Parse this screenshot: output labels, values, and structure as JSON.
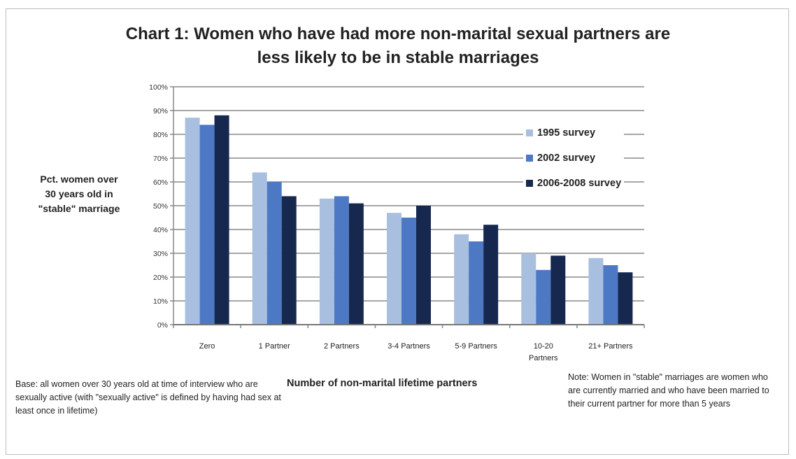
{
  "chart_data": {
    "type": "bar",
    "title": "Chart 1: Women who have had more non-marital sexual partners are less likely to be in stable marriages",
    "title_lines": [
      "Chart 1: Women who have had more non-marital sexual partners are",
      "less likely to be in stable marriages"
    ],
    "xlabel": "Number of non-marital lifetime partners",
    "ylabel_lines": [
      "Pct. women over",
      "30 years  old in",
      "\"stable\" marriage"
    ],
    "ylim": [
      0,
      100
    ],
    "yticks": [
      0,
      10,
      20,
      30,
      40,
      50,
      60,
      70,
      80,
      90,
      100
    ],
    "ytick_labels": [
      "0%",
      "10%",
      "20%",
      "30%",
      "40%",
      "50%",
      "60%",
      "70%",
      "80%",
      "90%",
      "100%"
    ],
    "grid": true,
    "legend_position": "right",
    "categories": [
      "Zero",
      "1 Partner",
      "2 Partners",
      "3-4 Partners",
      "5-9 Partners",
      "10-20 Partners",
      "21+ Partners"
    ],
    "category_label_lines": [
      [
        "Zero"
      ],
      [
        "1 Partner"
      ],
      [
        "2 Partners"
      ],
      [
        "3-4 Partners"
      ],
      [
        "5-9 Partners"
      ],
      [
        "10-20",
        "Partners"
      ],
      [
        "21+ Partners"
      ]
    ],
    "series": [
      {
        "name": "1995 survey",
        "color": "#a9bfe0",
        "values": [
          87,
          64,
          53,
          47,
          38,
          30,
          28
        ]
      },
      {
        "name": "2002 survey",
        "color": "#4d78c4",
        "values": [
          84,
          60,
          54,
          45,
          35,
          23,
          25
        ]
      },
      {
        "name": "2006-2008 survey",
        "color": "#17284f",
        "values": [
          88,
          54,
          51,
          50,
          42,
          29,
          22
        ]
      }
    ]
  },
  "notes": {
    "base": "Base: all women over 30 years old at time of interview who are sexually active (with \"sexually active\" is defined by having had sex at least once in lifetime)",
    "note": "Note: Women in \"stable\" marriages are women who are currently married and who have been married to their current partner for more than 5 years"
  }
}
